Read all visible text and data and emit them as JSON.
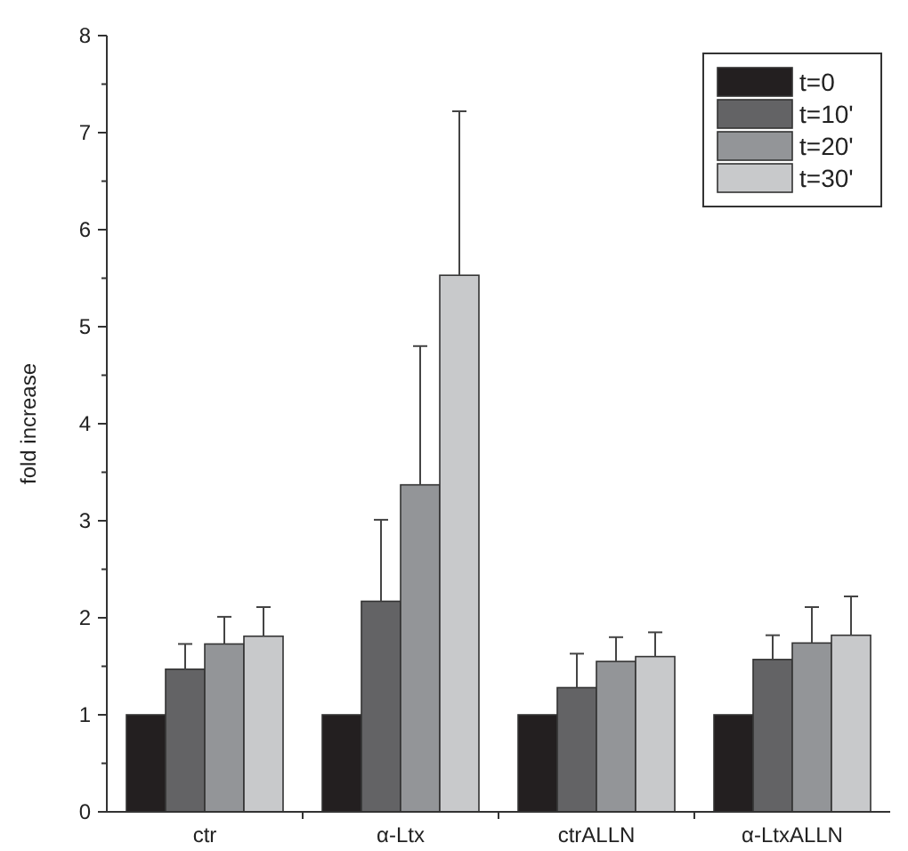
{
  "chart_data": {
    "type": "bar",
    "ylabel": "fold increase",
    "categories": [
      "ctr",
      "α-Ltx",
      "ctrALLN",
      "α-LtxALLN"
    ],
    "ylim": [
      0,
      8
    ],
    "yticks": [
      0,
      {
        "value": 0.5,
        "label": null
      },
      1,
      {
        "value": 1.5,
        "label": null
      },
      2,
      {
        "value": 2.5,
        "label": null
      },
      3,
      {
        "value": 3.5,
        "label": null
      },
      4,
      {
        "value": 4.5,
        "label": null
      },
      5,
      {
        "value": 5.5,
        "label": null
      },
      6,
      {
        "value": 6.5,
        "label": null
      },
      7,
      {
        "value": 7.5,
        "label": null
      },
      8
    ],
    "legend": "top right",
    "grid": false,
    "series": [
      {
        "name": "t=0",
        "color": "#231f20",
        "values": [
          1,
          1,
          1,
          1
        ]
      },
      {
        "name": "t=10'",
        "color": "#636365",
        "values": [
          1.47,
          2.17,
          1.28,
          1.57
        ],
        "errors": [
          [
            1.47,
            1.73
          ],
          [
            2.17,
            3.01
          ],
          [
            1.28,
            1.63
          ],
          [
            1.57,
            1.82
          ]
        ]
      },
      {
        "name": "t=20'",
        "color": "#939598",
        "values": [
          1.73,
          3.37,
          1.55,
          1.74
        ],
        "errors": [
          [
            1.73,
            2.01
          ],
          [
            3.37,
            4.8
          ],
          [
            1.55,
            1.8
          ],
          [
            1.74,
            2.11
          ]
        ]
      },
      {
        "name": "t=30'",
        "color": "#c8c9cb",
        "values": [
          1.81,
          5.53,
          1.6,
          1.82
        ],
        "errors": [
          [
            1.81,
            2.11
          ],
          [
            5.53,
            7.22
          ],
          [
            1.6,
            1.85
          ],
          [
            1.82,
            2.22
          ]
        ]
      }
    ]
  }
}
